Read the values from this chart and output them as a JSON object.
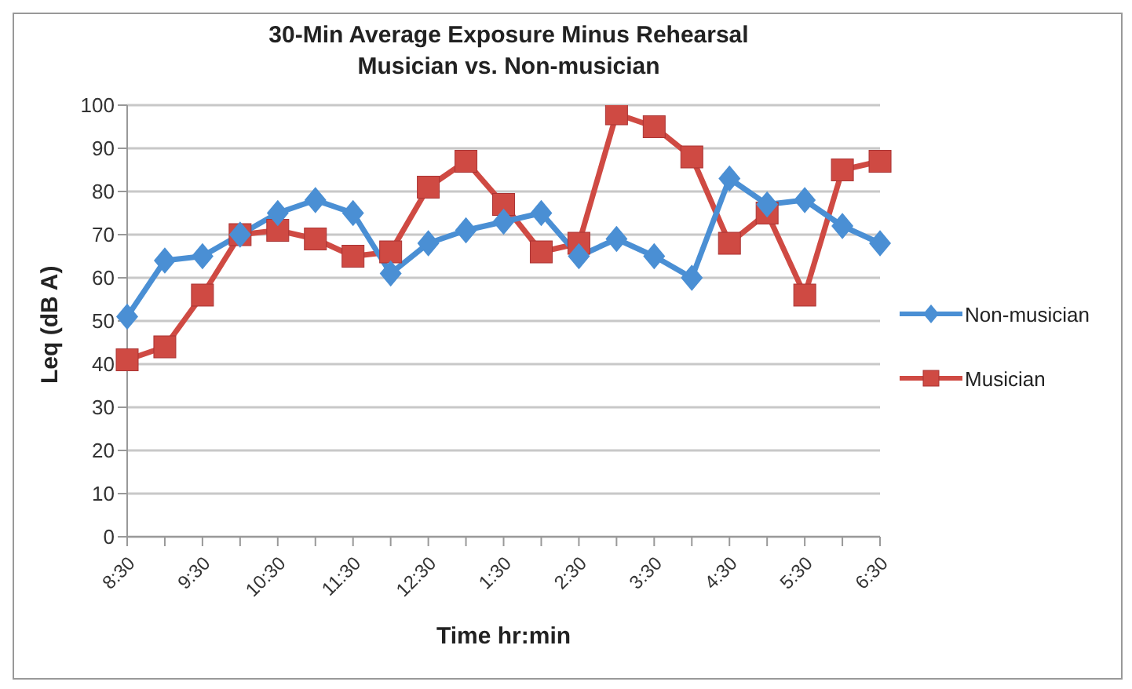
{
  "chart_data": {
    "type": "line",
    "title": "30-Min Average Exposure Minus Rehearsal\nMusician vs. Non-musician",
    "xlabel": "Time hr:min",
    "ylabel": "Leq (dB A)",
    "categories": [
      "8:30",
      null,
      "9:30",
      null,
      "10:30",
      null,
      "11:30",
      null,
      "12:30",
      null,
      "1:30",
      null,
      "2:30",
      null,
      "3:30",
      null,
      "4:30",
      null,
      "5:30",
      null,
      "6:30"
    ],
    "series": [
      {
        "name": "Non-musician",
        "color": "#4a8fd4",
        "marker": "diamond",
        "values": [
          51,
          64,
          65,
          70,
          75,
          78,
          75,
          61,
          68,
          71,
          73,
          75,
          65,
          69,
          65,
          60,
          83,
          77,
          78,
          72,
          68
        ]
      },
      {
        "name": "Musician",
        "color": "#cf4a43",
        "marker": "square",
        "values": [
          41,
          44,
          56,
          70,
          71,
          69,
          65,
          66,
          81,
          87,
          77,
          66,
          68,
          98,
          95,
          88,
          68,
          75,
          56,
          85,
          87
        ]
      }
    ],
    "ylim": [
      0,
      100
    ],
    "yticks": [
      0,
      10,
      20,
      30,
      40,
      50,
      60,
      70,
      80,
      90,
      100
    ],
    "grid": "y",
    "legend": "right",
    "line_style": "solid"
  }
}
